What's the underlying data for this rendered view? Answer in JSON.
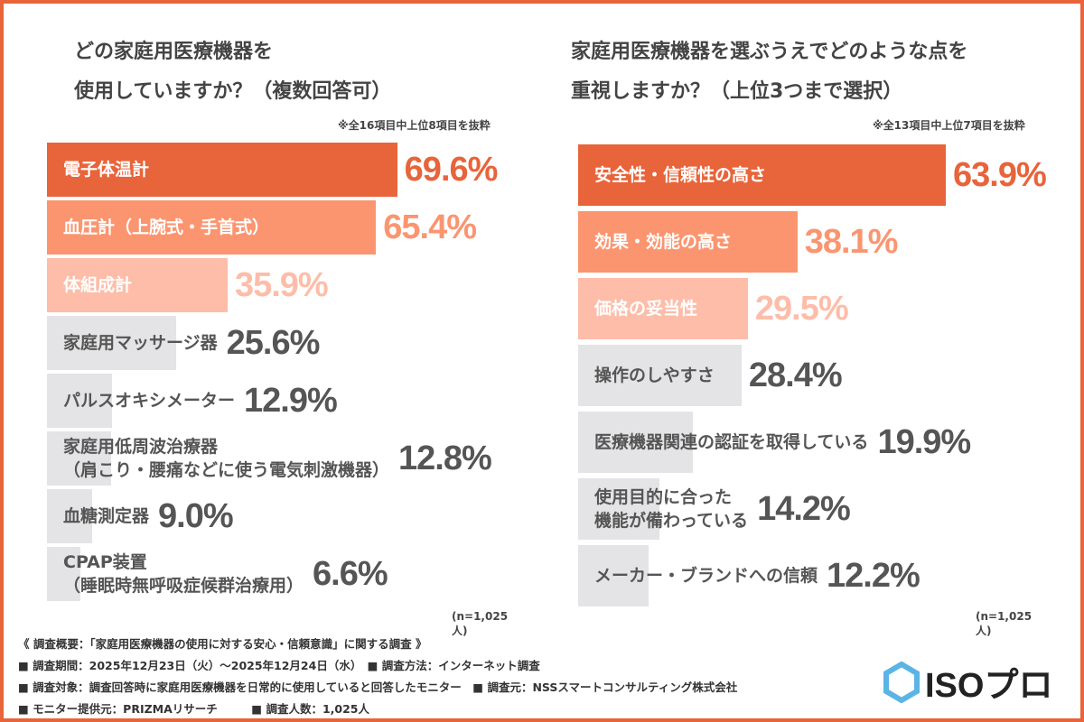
{
  "colors": {
    "top": "#E8643A",
    "second": "#FB9570",
    "third": "#FDBDA9",
    "rest": "#E4E4E6",
    "frame": "#E8643A"
  },
  "chart_data": [
    {
      "type": "bar",
      "orientation": "horizontal",
      "title_line1": "どの家庭用医療機器を",
      "title_line2": "使用していますか？（複数回答可）",
      "note": "※全16項目中上位8項目を抜粋",
      "sample": "(n=1,025人)",
      "categories": [
        "電子体温計",
        "血圧計（上腕式・手首式）",
        "体組成計",
        "家庭用マッサージ器",
        "パルスオキシメーター",
        "家庭用低周波治療器\n（肩こり・腰痛などに使う電気刺激機器）",
        "血糖測定器",
        "CPAP装置\n（睡眠時無呼吸症候群治療用）"
      ],
      "values": [
        69.6,
        65.4,
        35.9,
        25.6,
        12.9,
        12.8,
        9.0,
        6.6
      ],
      "labels": [
        "69.6%",
        "65.4%",
        "35.9%",
        "25.6%",
        "12.9%",
        "12.8%",
        "9.0%",
        "6.6%"
      ]
    },
    {
      "type": "bar",
      "orientation": "horizontal",
      "title_line1": "家庭用医療機器を選ぶうえでどのような点を",
      "title_line2": "重視しますか？（上位3つまで選択）",
      "note": "※全13項目中上位7項目を抜粋",
      "sample": "(n=1,025人)",
      "categories": [
        "安全性・信頼性の高さ",
        "効果・効能の高さ",
        "価格の妥当性",
        "操作のしやすさ",
        "医療機器関連の認証を取得している",
        "使用目的に合った\n機能が備わっている",
        "メーカー・ブランドへの信頼"
      ],
      "values": [
        63.9,
        38.1,
        29.5,
        28.4,
        19.9,
        14.2,
        12.2
      ],
      "labels": [
        "63.9%",
        "38.1%",
        "29.5%",
        "28.4%",
        "19.9%",
        "14.2%",
        "12.2%"
      ]
    }
  ],
  "footer": {
    "heading": "《 調査概要：「家庭用医療機器の使用に対する安心・信頼意識」に関する調査 》",
    "line1": "■ 調査期間：2025年12月23日（火）～2025年12月24日（水）　■ 調査方法：インターネット調査",
    "line2": "■ 調査対象：調査回答時に家庭用医療機器を日常的に使用していると回答したモニター　■ 調査元：NSSスマートコンサルティング株式会社",
    "line3": "■ モニター提供元：PRIZMAリサーチ　　　■ 調査人数：1,025人"
  },
  "logo": {
    "text": "ISOプロ",
    "icon": "hexagon-icon"
  }
}
